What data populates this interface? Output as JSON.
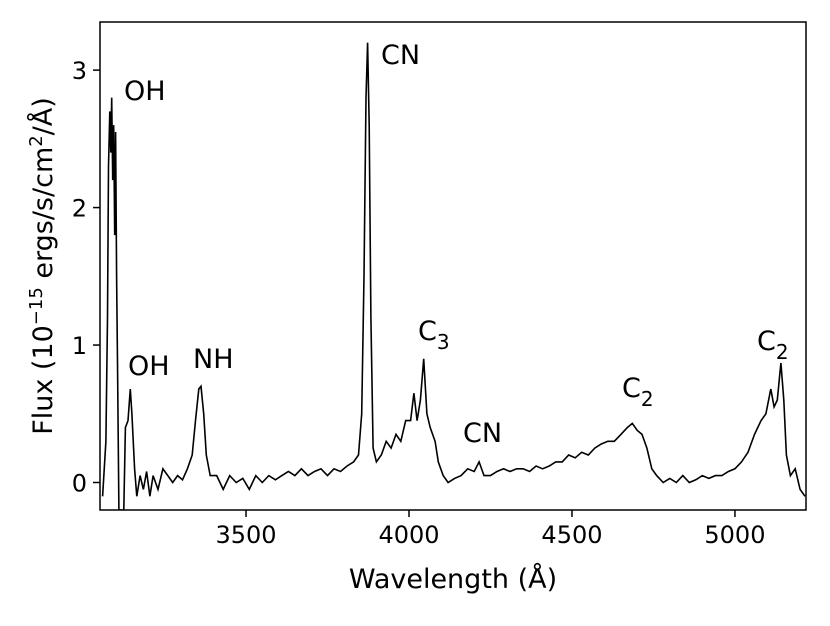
{
  "chart_data": {
    "type": "line",
    "color": "#000000",
    "xlabel": "Wavelength (Å)",
    "ylabel": [
      "Flux (10",
      "−15",
      " ergs/s/cm",
      "2",
      "/Å)"
    ],
    "xlim": [
      3052,
      5218
    ],
    "ylim": [
      -0.2,
      3.35
    ],
    "xticks": [
      3500,
      4000,
      4500,
      5000
    ],
    "yticks": [
      0,
      1,
      2,
      3
    ],
    "annotations": [
      {
        "text": "OH"
      },
      {
        "text": "OH"
      },
      {
        "text": "NH"
      },
      {
        "text": "CN"
      },
      {
        "text": "C",
        "sub": "3"
      },
      {
        "text": "CN"
      },
      {
        "text": "C",
        "sub": "2"
      },
      {
        "text": "C",
        "sub": "2"
      }
    ],
    "x": [
      3060,
      3070,
      3075,
      3078,
      3082,
      3085,
      3088,
      3091,
      3094,
      3097,
      3100,
      3103,
      3106,
      3110,
      3118,
      3125,
      3130,
      3138,
      3145,
      3150,
      3158,
      3165,
      3175,
      3185,
      3195,
      3205,
      3215,
      3230,
      3245,
      3260,
      3275,
      3290,
      3305,
      3320,
      3335,
      3345,
      3355,
      3362,
      3370,
      3378,
      3390,
      3410,
      3430,
      3450,
      3470,
      3490,
      3510,
      3530,
      3550,
      3570,
      3590,
      3610,
      3630,
      3650,
      3670,
      3690,
      3710,
      3730,
      3750,
      3770,
      3790,
      3810,
      3830,
      3845,
      3855,
      3862,
      3868,
      3873,
      3878,
      3883,
      3890,
      3900,
      3915,
      3930,
      3945,
      3960,
      3975,
      3990,
      4005,
      4015,
      4025,
      4035,
      4045,
      4055,
      4065,
      4080,
      4090,
      4105,
      4120,
      4140,
      4160,
      4180,
      4200,
      4215,
      4230,
      4250,
      4270,
      4290,
      4310,
      4330,
      4350,
      4370,
      4390,
      4410,
      4430,
      4450,
      4470,
      4490,
      4510,
      4530,
      4550,
      4570,
      4590,
      4610,
      4630,
      4650,
      4670,
      4685,
      4700,
      4715,
      4730,
      4745,
      4760,
      4780,
      4800,
      4820,
      4840,
      4860,
      4880,
      4900,
      4920,
      4940,
      4960,
      4980,
      5000,
      5020,
      5040,
      5060,
      5080,
      5095,
      5110,
      5120,
      5130,
      5141,
      5150,
      5158,
      5170,
      5185,
      5200,
      5215
    ],
    "values": [
      -0.1,
      0.3,
      1.2,
      2.3,
      2.7,
      2.4,
      2.8,
      2.2,
      2.6,
      1.8,
      2.55,
      1.5,
      0.8,
      -0.2,
      -0.2,
      -0.2,
      0.4,
      0.45,
      0.68,
      0.5,
      0.1,
      -0.1,
      0.05,
      -0.05,
      0.08,
      -0.1,
      0.05,
      -0.05,
      0.1,
      0.05,
      0.0,
      0.05,
      0.02,
      0.1,
      0.2,
      0.45,
      0.68,
      0.7,
      0.5,
      0.2,
      0.05,
      0.05,
      -0.05,
      0.05,
      0.0,
      0.03,
      -0.05,
      0.05,
      0.0,
      0.05,
      0.02,
      0.05,
      0.08,
      0.05,
      0.1,
      0.05,
      0.08,
      0.1,
      0.05,
      0.1,
      0.08,
      0.12,
      0.15,
      0.2,
      0.5,
      1.5,
      2.8,
      3.2,
      2.6,
      1.2,
      0.25,
      0.15,
      0.2,
      0.3,
      0.25,
      0.35,
      0.3,
      0.45,
      0.45,
      0.65,
      0.45,
      0.6,
      0.9,
      0.5,
      0.4,
      0.3,
      0.15,
      0.05,
      0.0,
      0.03,
      0.05,
      0.1,
      0.08,
      0.15,
      0.05,
      0.05,
      0.08,
      0.1,
      0.08,
      0.1,
      0.1,
      0.08,
      0.12,
      0.1,
      0.12,
      0.15,
      0.15,
      0.2,
      0.18,
      0.22,
      0.2,
      0.25,
      0.28,
      0.3,
      0.3,
      0.35,
      0.4,
      0.43,
      0.38,
      0.35,
      0.25,
      0.1,
      0.05,
      0.0,
      0.03,
      0.0,
      0.05,
      0.0,
      0.02,
      0.05,
      0.03,
      0.05,
      0.05,
      0.08,
      0.1,
      0.15,
      0.22,
      0.35,
      0.45,
      0.5,
      0.68,
      0.55,
      0.6,
      0.87,
      0.6,
      0.2,
      0.05,
      0.1,
      -0.05,
      -0.1
    ]
  }
}
